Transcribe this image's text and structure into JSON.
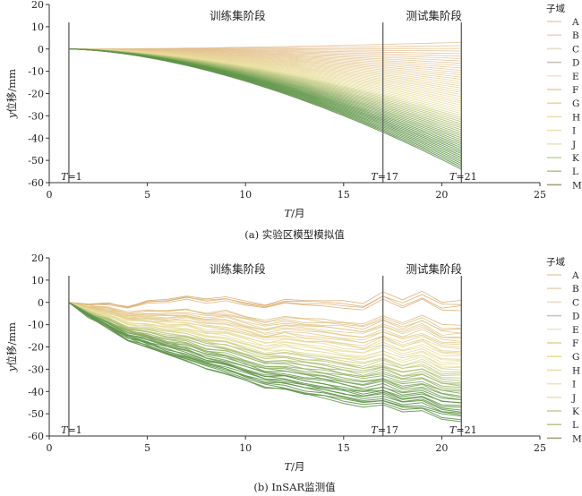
{
  "chart_data": [
    {
      "type": "line",
      "caption": "(a) 实验区模型模拟值",
      "xlabel_italic": "T",
      "xlabel_rest": "/月",
      "ylabel_italic": "y",
      "ylabel_rest": "位移/mm",
      "xlim": [
        0,
        25
      ],
      "ylim": [
        -60,
        20
      ],
      "xticks": [
        0,
        5,
        10,
        15,
        20,
        25
      ],
      "yticks": [
        20,
        10,
        0,
        -10,
        -20,
        -30,
        -40,
        -50,
        -60
      ],
      "grid": false,
      "legend_title": "子域",
      "legend_items": [
        "A",
        "B",
        "C",
        "D",
        "E",
        "F",
        "G",
        "H",
        "I",
        "J",
        "K",
        "L",
        "M"
      ],
      "legend_position": "right",
      "phase_labels": {
        "train": "训练集阶段",
        "test": "测试集阶段"
      },
      "markers": [
        {
          "x": 1,
          "italic": "T",
          "rest": "=1"
        },
        {
          "x": 17,
          "italic": "T",
          "rest": "=17"
        },
        {
          "x": 21,
          "italic": "T",
          "rest": "=21"
        }
      ],
      "series_count": 60,
      "series_range_at_T21": [
        -54,
        3
      ],
      "series_range_at_T17": [
        -37,
        2
      ],
      "x": [
        1,
        21
      ],
      "colors": {
        "top": "#e2b98a",
        "mid": "#e8df9a",
        "bottom": "#5f9548"
      }
    },
    {
      "type": "line",
      "caption": "(b) InSAR监测值",
      "xlabel_italic": "T",
      "xlabel_rest": "/月",
      "ylabel_italic": "y",
      "ylabel_rest": "位移/mm",
      "xlim": [
        0,
        25
      ],
      "ylim": [
        -60,
        20
      ],
      "xticks": [
        0,
        5,
        10,
        15,
        20,
        25
      ],
      "yticks": [
        20,
        10,
        0,
        -10,
        -20,
        -30,
        -40,
        -50,
        -60
      ],
      "grid": false,
      "legend_title": "子域",
      "legend_items": [
        "A",
        "B",
        "C",
        "D",
        "E",
        "F",
        "G",
        "H",
        "I",
        "J",
        "K",
        "L",
        "M"
      ],
      "legend_position": "right",
      "phase_labels": {
        "train": "训练集阶段",
        "test": "测试集阶段"
      },
      "markers": [
        {
          "x": 1,
          "italic": "T",
          "rest": "=1"
        },
        {
          "x": 17,
          "italic": "T",
          "rest": "=17"
        },
        {
          "x": 21,
          "italic": "T",
          "rest": "=21"
        }
      ],
      "series_count": 60,
      "series_range_at_T21": [
        -52,
        3
      ],
      "series_range_at_T17": [
        -40,
        5
      ],
      "x": [
        1,
        21
      ],
      "colors": {
        "top": "#d9a86a",
        "mid": "#e8df9a",
        "bottom": "#5f9548",
        "pink": "#d98cb0"
      }
    }
  ]
}
